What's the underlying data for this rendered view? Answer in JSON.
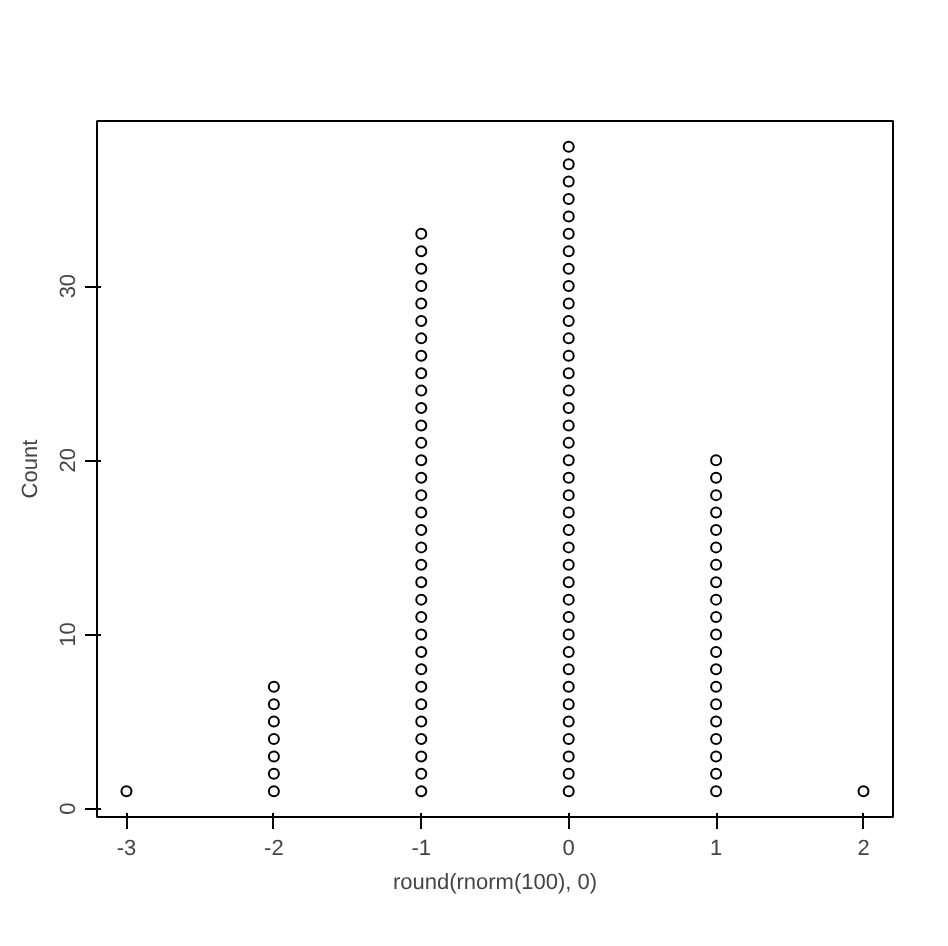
{
  "chart_data": {
    "type": "scatter",
    "xlabel": "round(rnorm(100), 0)",
    "ylabel": "Count",
    "x": [
      -3,
      -2,
      -2,
      -2,
      -2,
      -2,
      -2,
      -2,
      -1,
      -1,
      -1,
      -1,
      -1,
      -1,
      -1,
      -1,
      -1,
      -1,
      -1,
      -1,
      -1,
      -1,
      -1,
      -1,
      -1,
      -1,
      -1,
      -1,
      -1,
      -1,
      -1,
      -1,
      -1,
      -1,
      -1,
      -1,
      -1,
      -1,
      -1,
      -1,
      -1,
      0,
      0,
      0,
      0,
      0,
      0,
      0,
      0,
      0,
      0,
      0,
      0,
      0,
      0,
      0,
      0,
      0,
      0,
      0,
      0,
      0,
      0,
      0,
      0,
      0,
      0,
      0,
      0,
      0,
      0,
      0,
      0,
      0,
      0,
      0,
      0,
      0,
      0,
      1,
      1,
      1,
      1,
      1,
      1,
      1,
      1,
      1,
      1,
      1,
      1,
      1,
      1,
      1,
      1,
      1,
      1,
      1,
      1,
      2
    ],
    "values": [
      1,
      1,
      2,
      3,
      4,
      5,
      6,
      7,
      1,
      2,
      3,
      4,
      5,
      6,
      7,
      8,
      9,
      10,
      11,
      12,
      13,
      14,
      15,
      16,
      17,
      18,
      19,
      20,
      21,
      22,
      23,
      24,
      25,
      26,
      27,
      28,
      29,
      30,
      31,
      32,
      33,
      1,
      2,
      3,
      4,
      5,
      6,
      7,
      8,
      9,
      10,
      11,
      12,
      13,
      14,
      15,
      16,
      17,
      18,
      19,
      20,
      21,
      22,
      23,
      24,
      25,
      26,
      27,
      28,
      29,
      30,
      31,
      32,
      33,
      34,
      35,
      36,
      37,
      38,
      1,
      2,
      3,
      4,
      5,
      6,
      7,
      8,
      9,
      10,
      11,
      12,
      13,
      14,
      15,
      16,
      17,
      18,
      19,
      20,
      1
    ],
    "color": "#000000",
    "marker": "circle",
    "grid": false,
    "xlim": [
      -3.2,
      2.2
    ],
    "ylim": [
      -0.48,
      39.48
    ],
    "xticks": [
      {
        "value": -3,
        "label": "-3"
      },
      {
        "value": -2,
        "label": "-2"
      },
      {
        "value": -1,
        "label": "-1"
      },
      0,
      1,
      2
    ],
    "yticks": [
      0,
      10,
      20,
      30
    ]
  }
}
